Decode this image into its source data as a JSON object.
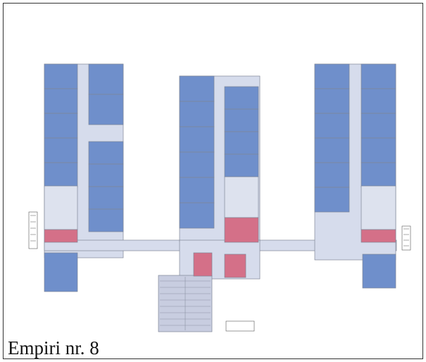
{
  "caption": "Empiri nr. 8",
  "colors": {
    "room_blue": "#6f8fcb",
    "room_red": "#d47088",
    "corridor": "#d6dcec",
    "wall": "#7f8797",
    "outline": "#333333"
  },
  "legend_note": ""
}
